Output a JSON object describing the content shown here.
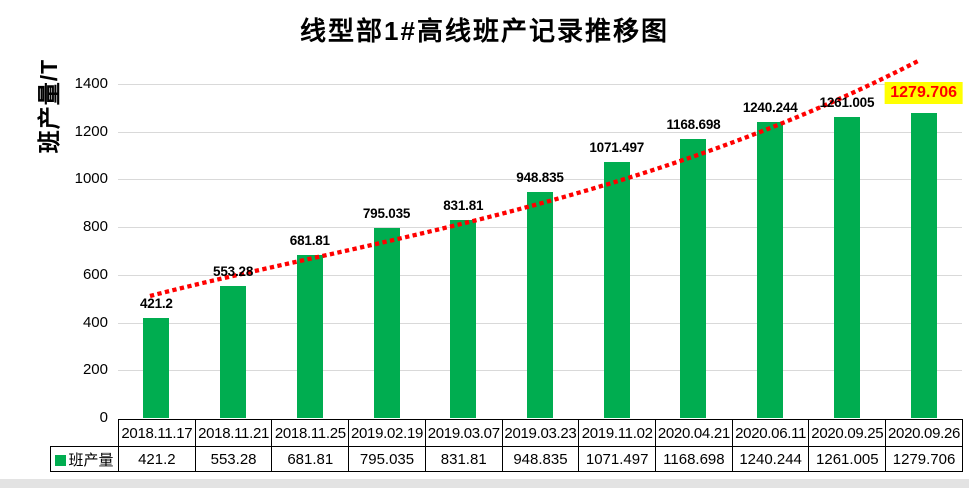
{
  "window": {
    "bottom_strip_color": "#E3E3E3",
    "background": "#FFFFFF"
  },
  "chart_data": {
    "type": "bar",
    "title": "线型部1#高线班产记录推移图",
    "xlabel": "",
    "ylabel": "班产量/T",
    "categories": [
      "2018.11.17",
      "2018.11.21",
      "2018.11.25",
      "2019.02.19",
      "2019.03.07",
      "2019.03.23",
      "2019.11.02",
      "2020.04.21",
      "2020.06.11",
      "2020.09.25",
      "2020.09.26"
    ],
    "series": [
      {
        "name": "班产量",
        "values": [
          421.2,
          553.28,
          681.81,
          795.035,
          831.81,
          948.835,
          1071.497,
          1168.698,
          1240.244,
          1261.005,
          1279.706
        ]
      }
    ],
    "value_labels": [
      "421.2",
      "553.28",
      "681.81",
      "795.035",
      "831.81",
      "948.835",
      "1071.497",
      "1168.698",
      "1240.244",
      "1261.005",
      "1279.706"
    ],
    "ylim": [
      0,
      1400
    ],
    "yticks": [
      "0",
      "200",
      "400",
      "600",
      "800",
      "1000",
      "1200",
      "1400"
    ],
    "grid": "horizontal-only",
    "gridline_color": "#D9D9D9",
    "bar_color": "#00AD50",
    "data_label_color": "#000000",
    "last_label_highlight": {
      "text_color": "#FF0000",
      "background": "#FFFF00"
    },
    "trendline": {
      "style": "round-dotted",
      "color": "#FF0000"
    },
    "legend": {
      "label": "班产量",
      "position": "data-table-left",
      "key_color": "#00AD50"
    },
    "data_table": {
      "shown": true,
      "border_color": "#000000",
      "row_label": "班产量"
    }
  }
}
